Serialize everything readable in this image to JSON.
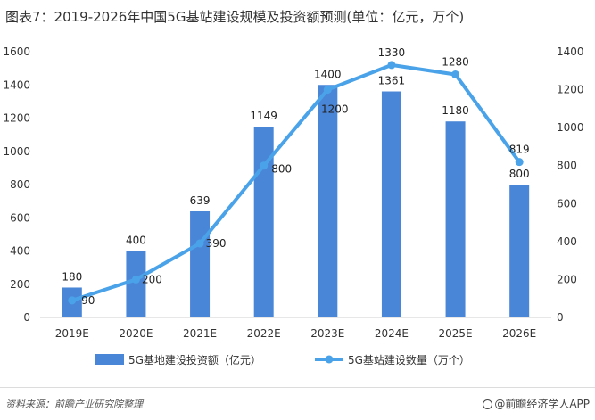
{
  "title": "图表7：2019-2026年中国5G基站建设规模及投资额预测(单位：亿元，万个)",
  "source": "资料来源：前瞻产业研究院整理",
  "brand": "@前瞻经济学人APP",
  "colors": {
    "bar": "#4a86d8",
    "line": "#4aa3e8"
  },
  "chart_data": {
    "type": "bar",
    "categories": [
      "2019E",
      "2020E",
      "2021E",
      "2022E",
      "2023E",
      "2024E",
      "2025E",
      "2026E"
    ],
    "series": [
      {
        "name": "5G基地建设投资额（亿元）",
        "type": "bar",
        "axis": "left",
        "values": [
          180,
          400,
          639,
          1149,
          1400,
          1361,
          1180,
          800
        ]
      },
      {
        "name": "5G基站建设数量（万个）",
        "type": "line",
        "axis": "right",
        "values": [
          90,
          200,
          390,
          800,
          1200,
          1330,
          1280,
          819
        ]
      }
    ],
    "ylim_left": [
      0,
      1600
    ],
    "yticks_left": [
      0,
      200,
      400,
      600,
      800,
      1000,
      1200,
      1400,
      1600
    ],
    "ylim_right": [
      0,
      1400
    ],
    "yticks_right": [
      0,
      200,
      400,
      600,
      800,
      1000,
      1200,
      1400
    ],
    "grid": false,
    "legend": "bottom"
  }
}
